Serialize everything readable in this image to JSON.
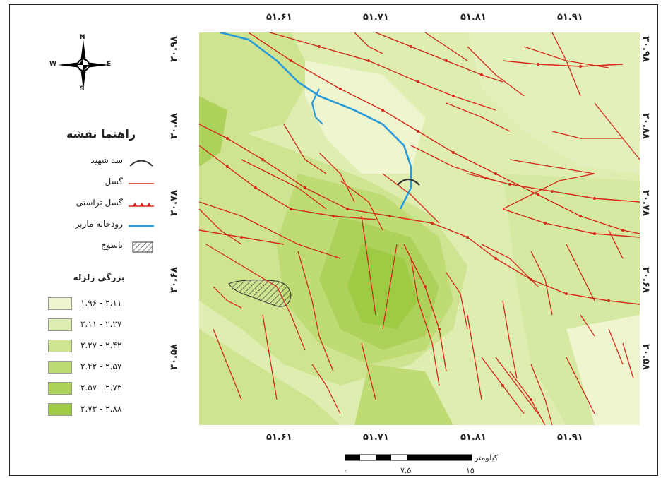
{
  "legend": {
    "title": "راهنما نقشه",
    "items": {
      "dam": "سد شهید",
      "fault": "گسل",
      "thrust_fault": "گسل تراستی",
      "river": "رودخانه ماربر",
      "city": "یاسوج"
    },
    "magnitude_title": "بزرگی زلزله",
    "classes": [
      {
        "label": "۱.۹۶ - ۲.۱۱",
        "color": "#eef5cf"
      },
      {
        "label": "۲.۱۱ - ۲.۲۷",
        "color": "#deedb0"
      },
      {
        "label": "۲.۲۷ - ۲.۴۲",
        "color": "#cfe491"
      },
      {
        "label": "۲.۴۲ - ۲.۵۷",
        "color": "#bedb74"
      },
      {
        "label": "۲.۵۷ - ۲.۷۳",
        "color": "#aed15b"
      },
      {
        "label": "۲.۷۳ - ۲.۸۸",
        "color": "#9fca44"
      }
    ]
  },
  "north_arrow": {
    "n": "N",
    "s": "S",
    "e": "E",
    "w": "W"
  },
  "axes": {
    "top": [
      "۵۱.۶۱",
      "۵۱.۷۱",
      "۵۱.۸۱",
      "۵۱.۹۱"
    ],
    "bottom": [
      "۵۱.۶۱",
      "۵۱.۷۱",
      "۵۱.۸۱",
      "۵۱.۹۱"
    ],
    "left": [
      "۳۰.۹۸",
      "۳۰.۸۸",
      "۳۰.۷۸",
      "۳۰.۶۸",
      "۳۰.۵۸"
    ],
    "right": [
      "۳۰.۹۸",
      "۳۰.۸۸",
      "۳۰.۷۸",
      "۳۰.۶۸",
      "۳۰.۵۸"
    ]
  },
  "scale_bar": {
    "unit": "کیلومتر",
    "labels": [
      "۰",
      "۷.۵",
      "۱۵"
    ]
  },
  "colors": {
    "fault": "#d22a1a",
    "river": "#2a9ad8",
    "dam": "#333333",
    "city_hatch": "#333333"
  }
}
